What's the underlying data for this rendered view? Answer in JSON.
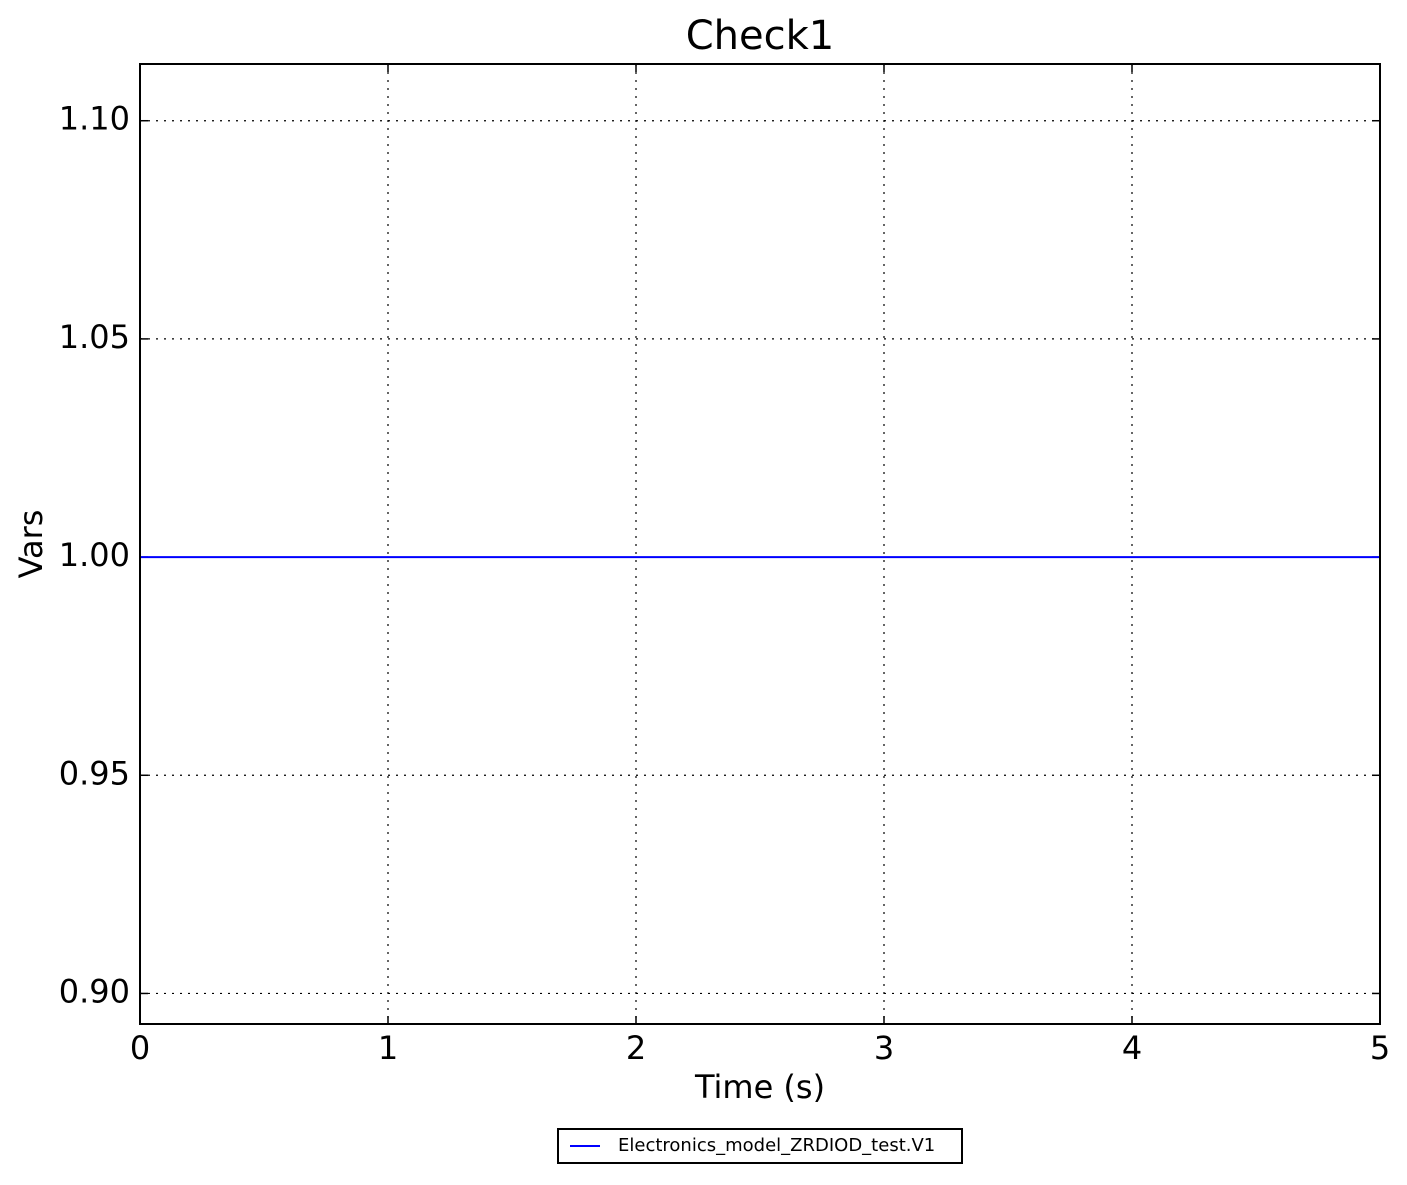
{
  "chart_data": {
    "type": "line",
    "title": "Check1",
    "xlabel": "Time (s)",
    "ylabel": "Vars",
    "x": [
      0,
      5
    ],
    "series": [
      {
        "name": "Electronics_model_ZRDIOD_test.V1",
        "color": "#0000ff",
        "values": [
          1,
          1
        ]
      }
    ],
    "xlim": [
      0,
      5
    ],
    "xticks": [
      0,
      1,
      2,
      3,
      4,
      5
    ],
    "ylim": [
      0.893,
      1.113
    ],
    "yticks": [
      {
        "value": 0.9,
        "label": "0.90"
      },
      0.95,
      {
        "value": 1,
        "label": "1.00"
      },
      1.05,
      {
        "value": 1.1,
        "label": "1.10"
      }
    ],
    "grid": true,
    "legend": "below"
  }
}
